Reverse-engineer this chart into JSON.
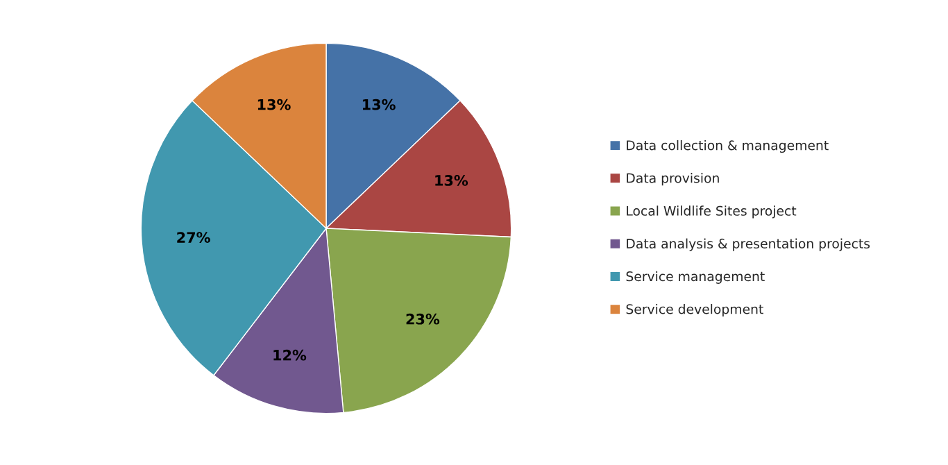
{
  "chart_data": {
    "type": "pie",
    "categories": [
      "Data collection & management",
      "Data provision",
      "Local Wildlife Sites project",
      "Data analysis & presentation projects",
      "Service management",
      "Service development"
    ],
    "values": [
      13,
      13,
      23,
      12,
      27,
      13
    ],
    "value_labels": [
      "13%",
      "13%",
      "23%",
      "12%",
      "27%",
      "13%"
    ],
    "colors": [
      "#4572a7",
      "#aa4643",
      "#89a54e",
      "#71588f",
      "#4198af",
      "#db843d"
    ],
    "legend": "right"
  }
}
